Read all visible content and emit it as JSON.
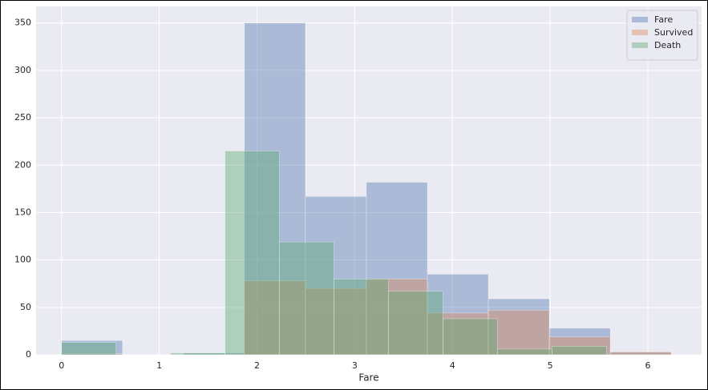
{
  "chart_data": {
    "type": "histogram",
    "xlabel": "Fare",
    "series": [
      {
        "name": "Fare",
        "color": "#4c72b0",
        "bins": [
          0,
          0.624,
          1.248,
          1.872,
          2.496,
          3.12,
          3.744,
          4.368,
          4.992,
          5.616,
          6.24
        ],
        "values": [
          15,
          0,
          2,
          350,
          167,
          182,
          85,
          59,
          28,
          3
        ]
      },
      {
        "name": "Survived",
        "color": "#dd8452",
        "bins": [
          0,
          0.624,
          1.248,
          1.872,
          2.496,
          3.12,
          3.744,
          4.368,
          4.992,
          5.616,
          6.24
        ],
        "values": [
          1,
          0,
          0,
          78,
          70,
          80,
          44,
          47,
          19,
          3
        ]
      },
      {
        "name": "Death",
        "color": "#55a868",
        "bins": [
          0,
          0.558,
          1.115,
          1.673,
          2.23,
          2.788,
          3.345,
          3.903,
          4.46,
          5.018,
          5.576
        ],
        "values": [
          13,
          0,
          2,
          215,
          119,
          80,
          67,
          38,
          6,
          9
        ]
      }
    ],
    "opacity": 0.4,
    "xlim": [
      -0.26,
      6.55
    ],
    "xticks": [
      0,
      1,
      2,
      3,
      4,
      5,
      6
    ],
    "ylim": [
      0,
      367.5
    ],
    "yticks": [
      0,
      50,
      100,
      150,
      200,
      250,
      300,
      350
    ],
    "grid": true,
    "legend": "upper right"
  }
}
